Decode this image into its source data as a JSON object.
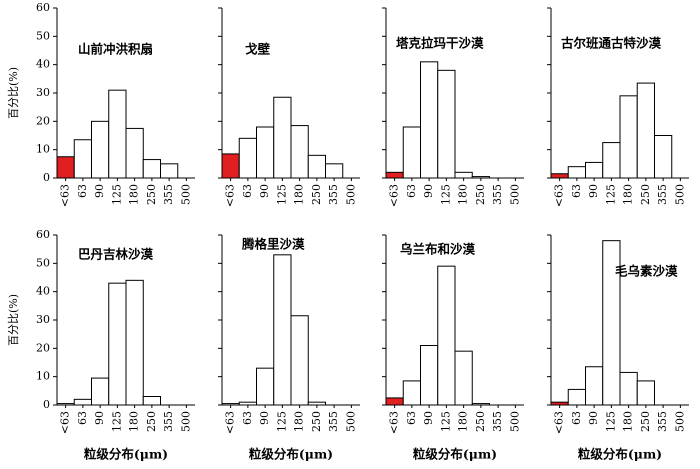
{
  "chart_data": [
    {
      "type": "bar",
      "title": "山前冲洪积扇",
      "ylabel": "百分比(%)",
      "categories": [
        "<63",
        "63",
        "90",
        "125",
        "180",
        "250",
        "355",
        "500"
      ],
      "values": [
        7.5,
        13.5,
        20,
        31,
        17.5,
        6.5,
        5,
        0
      ],
      "colors": [
        "#e02020",
        "#ffffff",
        "#ffffff",
        "#ffffff",
        "#ffffff",
        "#ffffff",
        "#ffffff",
        "#ffffff"
      ],
      "ylim": [
        0,
        60
      ],
      "yticks": [
        0,
        10,
        20,
        30,
        40,
        50,
        60
      ]
    },
    {
      "type": "bar",
      "title": "戈壁",
      "categories": [
        "<63",
        "63",
        "90",
        "125",
        "180",
        "250",
        "355",
        "500"
      ],
      "values": [
        8.5,
        14,
        18,
        28.5,
        18.5,
        8,
        5,
        0
      ],
      "colors": [
        "#e02020",
        "#ffffff",
        "#ffffff",
        "#ffffff",
        "#ffffff",
        "#ffffff",
        "#ffffff",
        "#ffffff"
      ],
      "ylim": [
        0,
        60
      ]
    },
    {
      "type": "bar",
      "title": "塔克拉玛干沙漠",
      "categories": [
        "<63",
        "63",
        "90",
        "125",
        "180",
        "250",
        "355",
        "500"
      ],
      "values": [
        2,
        18,
        41,
        38,
        2,
        0.5,
        0,
        0
      ],
      "colors": [
        "#e02020",
        "#ffffff",
        "#ffffff",
        "#ffffff",
        "#ffffff",
        "#ffffff",
        "#ffffff",
        "#ffffff"
      ],
      "ylim": [
        0,
        60
      ]
    },
    {
      "type": "bar",
      "title": "古尔班通古特沙漠",
      "categories": [
        "<63",
        "63",
        "90",
        "125",
        "180",
        "250",
        "355",
        "500"
      ],
      "values": [
        1.5,
        4,
        5.5,
        12.5,
        29,
        33.5,
        15,
        0
      ],
      "colors": [
        "#e02020",
        "#ffffff",
        "#ffffff",
        "#ffffff",
        "#ffffff",
        "#ffffff",
        "#ffffff",
        "#ffffff"
      ],
      "ylim": [
        0,
        60
      ]
    },
    {
      "type": "bar",
      "title": "巴丹吉林沙漠",
      "ylabel": "百分比(%)",
      "xlabel": "粒级分布(μm)",
      "categories": [
        "<63",
        "63",
        "90",
        "125",
        "180",
        "250",
        "355",
        "500"
      ],
      "values": [
        0.5,
        2,
        9.5,
        43,
        44,
        3,
        0,
        0
      ],
      "colors": [
        "#ffffff",
        "#ffffff",
        "#ffffff",
        "#ffffff",
        "#ffffff",
        "#ffffff",
        "#ffffff",
        "#ffffff"
      ],
      "ylim": [
        0,
        60
      ],
      "yticks": [
        0,
        10,
        20,
        30,
        40,
        50,
        60
      ]
    },
    {
      "type": "bar",
      "title": "腾格里沙漠",
      "xlabel": "粒级分布(μm)",
      "categories": [
        "<63",
        "63",
        "90",
        "125",
        "180",
        "250",
        "355",
        "500"
      ],
      "values": [
        0.5,
        1,
        13,
        53,
        31.5,
        1,
        0,
        0
      ],
      "colors": [
        "#ffffff",
        "#ffffff",
        "#ffffff",
        "#ffffff",
        "#ffffff",
        "#ffffff",
        "#ffffff",
        "#ffffff"
      ],
      "ylim": [
        0,
        60
      ]
    },
    {
      "type": "bar",
      "title": "乌兰布和沙漠",
      "xlabel": "粒级分布(μm)",
      "categories": [
        "<63",
        "63",
        "90",
        "125",
        "180",
        "250",
        "355",
        "500"
      ],
      "values": [
        2.5,
        8.5,
        21,
        49,
        19,
        0.5,
        0,
        0
      ],
      "colors": [
        "#e02020",
        "#ffffff",
        "#ffffff",
        "#ffffff",
        "#ffffff",
        "#ffffff",
        "#ffffff",
        "#ffffff"
      ],
      "ylim": [
        0,
        60
      ]
    },
    {
      "type": "bar",
      "title": "毛乌素沙漠",
      "xlabel": "粒级分布(μm)",
      "categories": [
        "<63",
        "63",
        "90",
        "125",
        "180",
        "250",
        "355",
        "500"
      ],
      "values": [
        1,
        5.5,
        13.5,
        58,
        11.5,
        8.5,
        0,
        0
      ],
      "colors": [
        "#e02020",
        "#ffffff",
        "#ffffff",
        "#ffffff",
        "#ffffff",
        "#ffffff",
        "#ffffff",
        "#ffffff"
      ],
      "ylim": [
        0,
        60
      ]
    }
  ]
}
